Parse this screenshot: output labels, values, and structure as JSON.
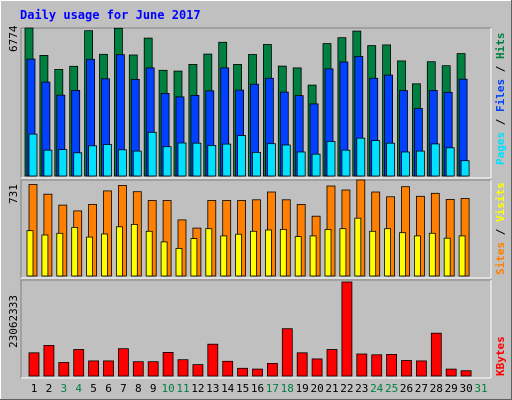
{
  "title": "Daily usage for June 2017",
  "colors": {
    "background": "#c0c0c0",
    "title": "#0000ff",
    "hits": "#008040",
    "files": "#0040ff",
    "pages": "#00e0ff",
    "visits": "#ff8000",
    "sites": "#ffff00",
    "kbytes": "#ff0000",
    "day_weekend": "#008040",
    "day_weekday": "#000000"
  },
  "chart_data": [
    {
      "type": "bar",
      "panel": "hits-files-pages",
      "y_label_max": "6774",
      "ylim": [
        0,
        6774
      ],
      "legend": {
        "placement": "right",
        "labels": [
          "Pages",
          "Files",
          "Hits"
        ],
        "separator": " / "
      },
      "categories": [
        "1",
        "2",
        "3",
        "4",
        "5",
        "6",
        "7",
        "8",
        "9",
        "10",
        "11",
        "12",
        "13",
        "14",
        "15",
        "16",
        "17",
        "18",
        "19",
        "20",
        "21",
        "22",
        "23",
        "24",
        "25",
        "26",
        "27",
        "28",
        "29",
        "30"
      ],
      "series": [
        {
          "name": "Hits",
          "values": [
            6774,
            5520,
            4880,
            5020,
            6650,
            5570,
            6760,
            5540,
            6310,
            4840,
            4800,
            5110,
            5580,
            6120,
            5110,
            5560,
            6020,
            5030,
            4950,
            4160,
            6060,
            6330,
            6630,
            5970,
            6000,
            5270,
            4220,
            5230,
            5050,
            5600
          ]
        },
        {
          "name": "Files",
          "values": [
            5350,
            4300,
            3700,
            3920,
            5340,
            4450,
            5550,
            4420,
            4950,
            3780,
            3620,
            3690,
            3900,
            4950,
            3930,
            4200,
            4470,
            3840,
            3680,
            3300,
            4900,
            5220,
            5470,
            4470,
            4620,
            3910,
            3090,
            3920,
            3830,
            4430
          ]
        },
        {
          "name": "Pages",
          "values": [
            1920,
            1180,
            1210,
            1060,
            1380,
            1440,
            1200,
            1140,
            2000,
            1340,
            1510,
            1500,
            1400,
            1460,
            1850,
            1080,
            1480,
            1420,
            1100,
            1000,
            1580,
            1180,
            1730,
            1620,
            1500,
            1100,
            1140,
            1470,
            1290,
            700
          ]
        }
      ]
    },
    {
      "type": "bar",
      "panel": "visits-sites",
      "y_label_max": "731",
      "ylim": [
        0,
        731
      ],
      "legend": {
        "placement": "right",
        "labels": [
          "Sites",
          "Visits"
        ],
        "separator": " / "
      },
      "categories": [
        "1",
        "2",
        "3",
        "4",
        "5",
        "6",
        "7",
        "8",
        "9",
        "10",
        "11",
        "12",
        "13",
        "14",
        "15",
        "16",
        "17",
        "18",
        "19",
        "20",
        "21",
        "22",
        "23",
        "24",
        "25",
        "26",
        "27",
        "28",
        "29",
        "30"
      ],
      "series": [
        {
          "name": "Visits",
          "values": [
            697,
            623,
            540,
            496,
            545,
            648,
            690,
            642,
            575,
            575,
            427,
            365,
            575,
            575,
            575,
            580,
            640,
            580,
            545,
            455,
            685,
            655,
            731,
            640,
            603,
            680,
            607,
            630,
            583,
            590
          ]
        },
        {
          "name": "Sites",
          "values": [
            345,
            312,
            325,
            370,
            296,
            320,
            375,
            393,
            340,
            260,
            210,
            285,
            360,
            305,
            318,
            340,
            350,
            355,
            300,
            305,
            355,
            360,
            440,
            340,
            360,
            330,
            305,
            325,
            288,
            305
          ]
        }
      ]
    },
    {
      "type": "bar",
      "panel": "kbytes",
      "y_label_max": "23062333",
      "ylim": [
        0,
        23062333
      ],
      "legend": {
        "placement": "right",
        "labels": [
          "KBytes"
        ],
        "separator": ""
      },
      "categories": [
        "1",
        "2",
        "3",
        "4",
        "5",
        "6",
        "7",
        "8",
        "9",
        "10",
        "11",
        "12",
        "13",
        "14",
        "15",
        "16",
        "17",
        "18",
        "19",
        "20",
        "21",
        "22",
        "23",
        "24",
        "25",
        "26",
        "27",
        "28",
        "29",
        "30"
      ],
      "series": [
        {
          "name": "KBytes",
          "values": [
            5700000,
            7500000,
            3300000,
            6500000,
            3700000,
            3700000,
            6700000,
            3500000,
            3500000,
            5800000,
            4000000,
            2800000,
            7800000,
            3600000,
            1900000,
            1700000,
            3100000,
            11600000,
            5700000,
            4200000,
            6500000,
            23062333,
            5400000,
            5200000,
            5300000,
            3800000,
            3700000,
            10500000,
            1700000,
            1300000
          ]
        }
      ]
    }
  ],
  "x_axis": {
    "days": [
      "1",
      "2",
      "3",
      "4",
      "5",
      "6",
      "7",
      "8",
      "9",
      "10",
      "11",
      "12",
      "13",
      "14",
      "15",
      "16",
      "17",
      "18",
      "19",
      "20",
      "21",
      "22",
      "23",
      "24",
      "25",
      "26",
      "27",
      "28",
      "29",
      "30",
      "31"
    ],
    "weekend_days": [
      "3",
      "4",
      "10",
      "11",
      "17",
      "18",
      "24",
      "25",
      "31"
    ]
  }
}
